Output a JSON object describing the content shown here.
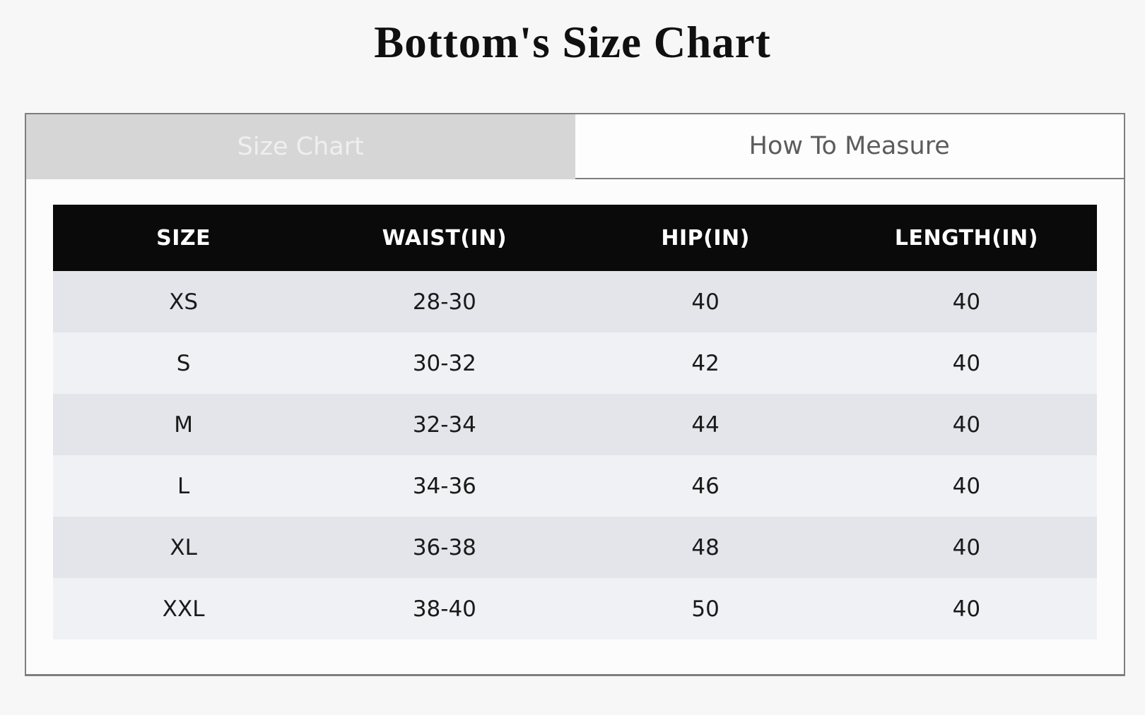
{
  "title": "Bottom's Size Chart",
  "tabs": {
    "size_chart": {
      "label": "Size Chart",
      "active": true
    },
    "how_to_measure": {
      "label": "How To Measure",
      "active": false
    }
  },
  "size_table": {
    "headers": [
      "SIZE",
      "WAIST(IN)",
      "HIP(IN)",
      "LENGTH(IN)"
    ],
    "rows": [
      [
        "XS",
        "28-30",
        "40",
        "40"
      ],
      [
        "S",
        "30-32",
        "42",
        "40"
      ],
      [
        "M",
        "32-34",
        "44",
        "40"
      ],
      [
        "L",
        "34-36",
        "46",
        "40"
      ],
      [
        "XL",
        "36-38",
        "48",
        "40"
      ],
      [
        "XXL",
        "38-40",
        "50",
        "40"
      ]
    ]
  },
  "colors": {
    "page_bg": "#f7f7f7",
    "panel_bg": "#fcfcfc",
    "panel_border": "#7e7e7e",
    "tab_active_bg": "#d6d6d6",
    "tab_active_text": "#efefef",
    "tab_inactive_bg": "#fdfdfd",
    "tab_inactive_text": "#5c5c5c",
    "table_header_bg": "#0a0a0a",
    "table_header_text": "#ffffff",
    "row_odd_bg": "#e3e5ea",
    "row_even_bg": "#f0f1f4",
    "cell_text": "#1a1a1a"
  }
}
